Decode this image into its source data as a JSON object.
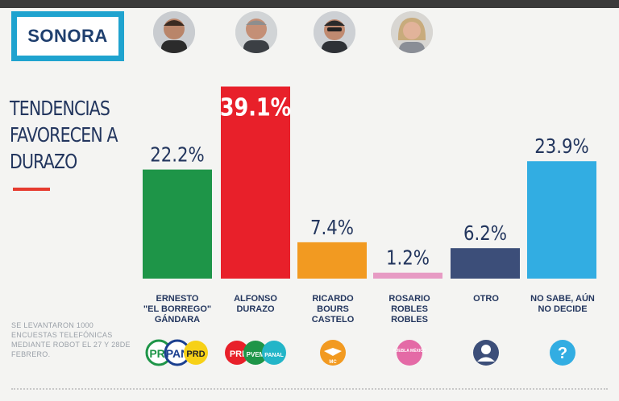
{
  "state": "SONORA",
  "headline": [
    "TENDENCIAS",
    "FAVORECEN A",
    "DURAZO"
  ],
  "note": "SE LEVANTARON 1000 ENCUESTAS TELEFÓNICAS MEDIANTE ROBOT EL 27 Y 28DE FEBRERO.",
  "candidates": [
    {
      "name_lines": [
        "ERNESTO",
        "\"EL BORREGO\"",
        "GÁNDARA"
      ],
      "parties": [
        "PRI",
        "PAN",
        "PRD"
      ]
    },
    {
      "name_lines": [
        "ALFONSO",
        "DURAZO"
      ],
      "parties": [
        "PRI",
        "PVEM",
        "PANAL"
      ]
    },
    {
      "name_lines": [
        "RICARDO",
        "BOURS",
        "CASTELO"
      ],
      "parties": [
        "MC"
      ]
    },
    {
      "name_lines": [
        "ROSARIO",
        "ROBLES",
        "ROBLES"
      ],
      "parties": [
        "PUEBLA MÉXICO"
      ]
    },
    {
      "name_lines": [
        "OTRO"
      ],
      "icon": "person-icon"
    },
    {
      "name_lines": [
        "NO SABE, AÚN",
        "NO DECIDE"
      ],
      "icon": "question-icon"
    }
  ],
  "colors": {
    "accent": "#1fa3cf",
    "navy": "#23365e",
    "red": "#e8202a",
    "green": "#1e9548",
    "orange": "#f29a21",
    "pink": "#e79bc4",
    "slate": "#3c4e79",
    "sky": "#32ade2"
  },
  "chart_data": {
    "type": "bar",
    "categories": [
      "ERNESTO \"EL BORREGO\" GÁNDARA",
      "ALFONSO DURAZO",
      "RICARDO BOURS CASTELO",
      "ROSARIO ROBLES ROBLES",
      "OTRO",
      "NO SABE, AÚN NO DECIDE"
    ],
    "values": [
      22.2,
      39.1,
      7.4,
      1.2,
      6.2,
      23.9
    ],
    "value_labels": [
      "22.2%",
      "39.1%",
      "7.4%",
      "1.2%",
      "6.2%",
      "23.9%"
    ],
    "colors": [
      "#1e9548",
      "#e8202a",
      "#f29a21",
      "#e79bc4",
      "#3c4e79",
      "#32ade2"
    ],
    "highlight_index": 1,
    "ylim": [
      0,
      40
    ],
    "grid": false,
    "legend": "none"
  }
}
